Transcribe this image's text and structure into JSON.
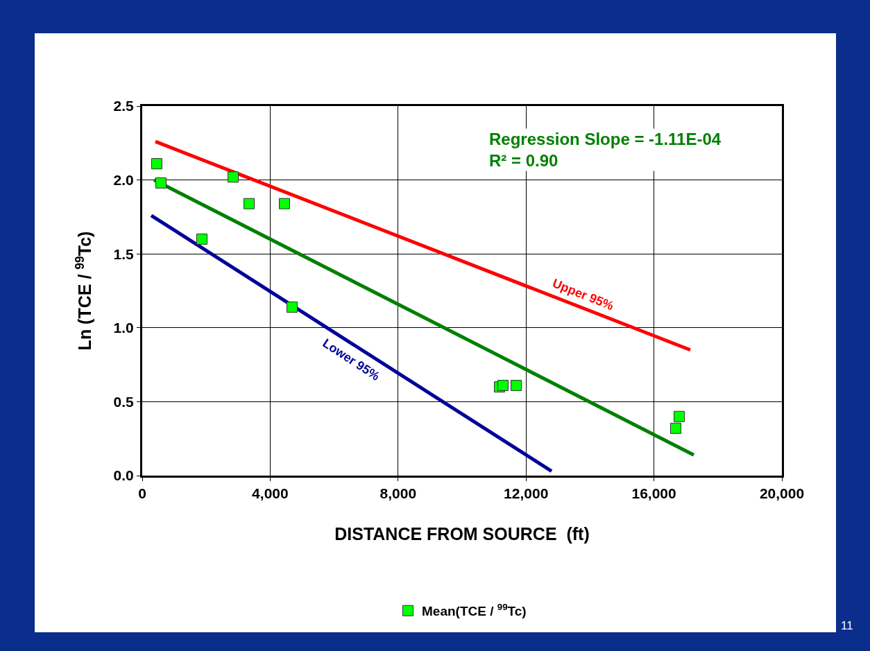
{
  "chart_data": {
    "type": "scatter",
    "xlabel": "DISTANCE FROM SOURCE  (ft)",
    "ylabel": "Ln (TCE / $^{99}$Tc)",
    "xlim": [
      0,
      20000
    ],
    "xticks": [
      {
        "value": 0,
        "label": "0"
      },
      {
        "value": 4000,
        "label": "4,000"
      },
      {
        "value": 8000,
        "label": "8,000"
      },
      {
        "value": 12000,
        "label": "12,000"
      },
      {
        "value": 16000,
        "label": "16,000"
      },
      {
        "value": 20000,
        "label": "20,000"
      }
    ],
    "ylim": [
      0,
      2.5
    ],
    "yticks": [
      {
        "value": 0,
        "label": "0.0"
      },
      {
        "value": 0.5,
        "label": "0.5"
      },
      {
        "value": 1,
        "label": "1.0"
      },
      {
        "value": 1.5,
        "label": "1.5"
      },
      {
        "value": 2,
        "label": "2.0"
      },
      {
        "value": 2.5,
        "label": "2.5"
      }
    ],
    "grid": true,
    "legend": "bottom",
    "series": [
      {
        "name": "Upper 95%",
        "type": "line",
        "marker": "none",
        "color": "#ff0000",
        "x": [
          412,
          17137
        ],
        "values": [
          2.26,
          0.85
        ]
      },
      {
        "type": "line",
        "marker": "none",
        "color": "#008000",
        "x": [
          369,
          17245
        ],
        "values": [
          2.0,
          0.14
        ]
      },
      {
        "name": "Lower 95%",
        "type": "line",
        "marker": "none",
        "color": "#000099",
        "x": [
          282,
          12798
        ],
        "values": [
          1.76,
          0.03
        ]
      },
      {
        "name": "Mean(TCE / $^{99}$Tc)",
        "marker": "square",
        "color": "#00ff00",
        "x": [
          455,
          586,
          1866,
          2842,
          3341,
          4447,
          4685,
          11171,
          11280,
          11692,
          16681,
          16790
        ],
        "values": [
          2.11,
          1.98,
          1.6,
          2.02,
          1.84,
          1.84,
          1.14,
          0.6,
          0.61,
          0.61,
          0.32,
          0.4
        ]
      }
    ],
    "annotations": [
      "Regression Slope = -1.11E-04",
      "R² = 0.90",
      "11"
    ]
  }
}
